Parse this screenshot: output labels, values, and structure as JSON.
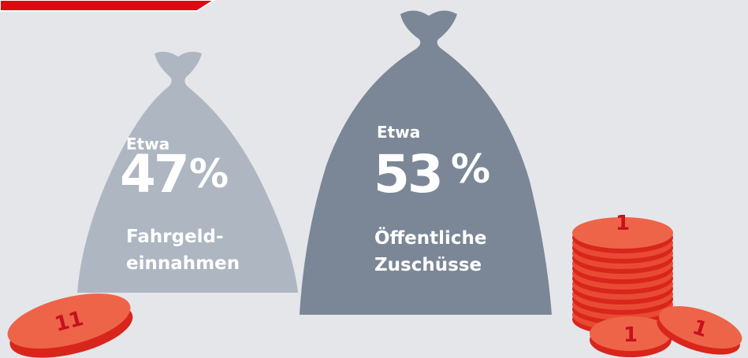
{
  "bags": [
    {
      "prefix": "Etwa",
      "value": 47,
      "unit": "%",
      "label_lines": [
        "Fahrgeld-",
        "einnahmen"
      ]
    },
    {
      "prefix": "Etwa",
      "value": 53,
      "unit": "%",
      "label_lines": [
        "Öffentliche",
        "Zuschüsse"
      ]
    }
  ],
  "coins": [
    "11",
    "1",
    "1",
    "1"
  ]
}
